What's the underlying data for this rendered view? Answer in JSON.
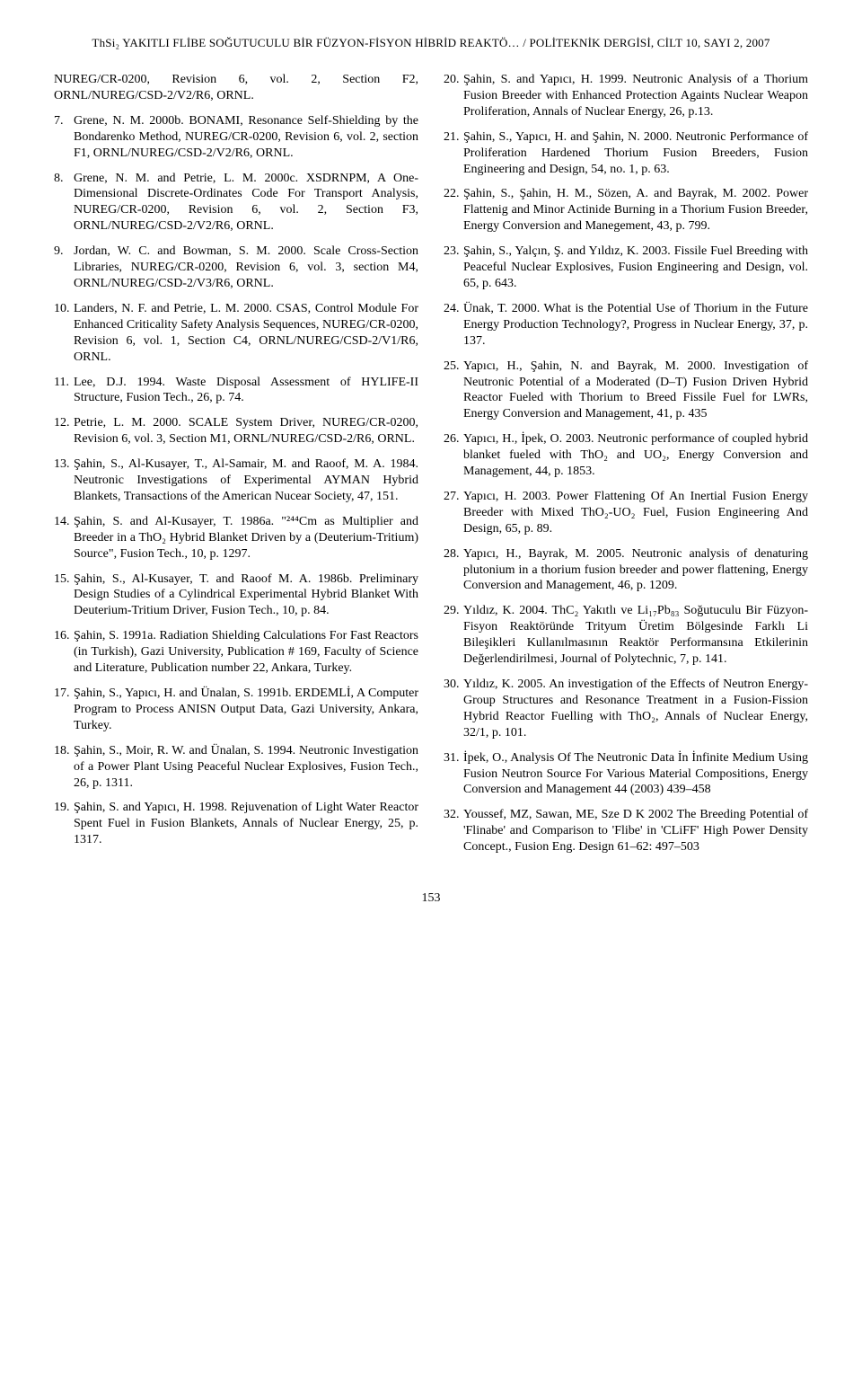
{
  "header": "ThSi₂ YAKITLI FLİBE SOĞUTUCULU BİR FÜZYON-FİSYON HİBRİD REAKTÖ… / POLİTEKNİK DERGİSİ, CİLT 10, SAYI 2, 2007",
  "page_number": "153",
  "left_refs": [
    {
      "n": "",
      "t": "NUREG/CR-0200, Revision 6, vol. 2, Section F2, ORNL/NUREG/CSD-2/V2/R6, ORNL."
    },
    {
      "n": "7.",
      "t": "Grene, N. M. 2000b. BONAMI, Resonance Self-Shielding by the Bondarenko Method, NUREG/CR-0200, Revision 6, vol. 2, section F1, ORNL/NUREG/CSD-2/V2/R6, ORNL."
    },
    {
      "n": "8.",
      "t": "Grene, N. M. and Petrie, L. M. 2000c. XSDRNPM, A One-Dimensional Discrete-Ordinates Code For Transport Analysis, NUREG/CR-0200, Revision 6, vol. 2, Section F3, ORNL/NUREG/CSD-2/V2/R6, ORNL."
    },
    {
      "n": "9.",
      "t": "Jordan, W. C. and Bowman, S. M. 2000. Scale Cross-Section Libraries, NUREG/CR-0200, Revision 6, vol. 3, section M4, ORNL/NUREG/CSD-2/V3/R6, ORNL."
    },
    {
      "n": "10.",
      "t": "Landers, N. F. and Petrie, L. M. 2000. CSAS, Control Module For Enhanced Criticality Safety Analysis Sequences, NUREG/CR-0200, Revision 6, vol. 1, Section C4, ORNL/NUREG/CSD-2/V1/R6, ORNL."
    },
    {
      "n": "11.",
      "t": "Lee, D.J. 1994. Waste Disposal Assessment of HYLIFE-II Structure, Fusion Tech., 26, p. 74."
    },
    {
      "n": "12.",
      "t": "Petrie, L. M. 2000. SCALE System Driver, NUREG/CR-0200, Revision 6, vol. 3, Section M1, ORNL/NUREG/CSD-2/R6, ORNL."
    },
    {
      "n": "13.",
      "t": "Şahin, S., Al-Kusayer, T., Al-Samair, M. and Raoof, M. A. 1984. Neutronic Investigations of Experimental AYMAN Hybrid Blankets, Transactions of the American Nucear Society, 47, 151."
    },
    {
      "n": "14.",
      "t": "Şahin, S. and Al-Kusayer, T. 1986a. \"²⁴⁴Cm as Multiplier and Breeder in a ThO₂ Hybrid Blanket Driven by a (Deuterium-Tritium) Source\", Fusion Tech., 10, p. 1297."
    },
    {
      "n": "15.",
      "t": "Şahin, S., Al-Kusayer, T. and Raoof M. A. 1986b. Preliminary Design Studies of a Cylindrical Experimental Hybrid Blanket With Deuterium-Tritium Driver, Fusion Tech., 10, p. 84."
    },
    {
      "n": "16.",
      "t": "Şahin, S. 1991a. Radiation Shielding Calculations For Fast Reactors (in Turkish), Gazi University, Publication # 169, Faculty of Science and Literature, Publication number 22, Ankara, Turkey."
    },
    {
      "n": "17.",
      "t": "Şahin, S., Yapıcı, H. and Ünalan, S. 1991b. ERDEMLİ, A Computer Program to Process ANISN Output Data, Gazi University, Ankara, Turkey."
    },
    {
      "n": "18.",
      "t": "Şahin, S., Moir, R. W. and Ünalan, S. 1994. Neutronic Investigation of a Power Plant Using Peaceful Nuclear Explosives, Fusion Tech., 26, p. 1311."
    },
    {
      "n": "19.",
      "t": "Şahin, S. and Yapıcı, H. 1998. Rejuvenation of Light Water Reactor Spent Fuel in Fusion Blankets, Annals of Nuclear Energy, 25, p. 1317."
    }
  ],
  "right_refs": [
    {
      "n": "20.",
      "t": "Şahin, S. and Yapıcı, H. 1999. Neutronic Analysis of a Thorium Fusion Breeder with Enhanced Protection Againts Nuclear Weapon Proliferation, Annals of Nuclear Energy, 26, p.13."
    },
    {
      "n": "21.",
      "t": "Şahin, S., Yapıcı, H. and Şahin, N. 2000. Neutronic Performance of Proliferation Hardened Thorium Fusion Breeders, Fusion Engineering and Design, 54, no. 1, p. 63."
    },
    {
      "n": "22.",
      "t": "Şahin, S., Şahin, H. M., Sözen, A. and Bayrak, M. 2002. Power Flattenig and Minor Actinide Burning in a Thorium Fusion Breeder, Energy Conversion and Manegement, 43, p. 799."
    },
    {
      "n": "23.",
      "t": "Şahin, S., Yalçın, Ş. and Yıldız, K. 2003. Fissile Fuel Breeding with Peaceful Nuclear Explosives, Fusion Engineering and Design, vol. 65, p. 643."
    },
    {
      "n": "24.",
      "t": "Ünak, T. 2000. What is the Potential Use of Thorium in the Future Energy Production Technology?, Progress in Nuclear Energy, 37, p. 137."
    },
    {
      "n": "25.",
      "t": "Yapıcı, H., Şahin, N. and Bayrak, M. 2000. Investigation of Neutronic Potential of a Moderated (D–T) Fusion Driven Hybrid Reactor Fueled with Thorium to Breed Fissile Fuel for LWRs, Energy Conversion and Management, 41, p. 435"
    },
    {
      "n": "26.",
      "t": "Yapıcı, H., İpek, O. 2003. Neutronic performance of coupled hybrid blanket fueled with ThO₂ and UO₂, Energy Conversion and Management, 44, p. 1853."
    },
    {
      "n": "27.",
      "t": "Yapıcı, H. 2003. Power Flattening Of An Inertial Fusion Energy Breeder with Mixed ThO₂-UO₂ Fuel, Fusion Engineering And Design, 65, p. 89."
    },
    {
      "n": "28.",
      "t": "Yapıcı, H., Bayrak, M. 2005. Neutronic analysis of denaturing plutonium in a thorium fusion breeder and power flattening, Energy Conversion and Management, 46, p. 1209."
    },
    {
      "n": "29.",
      "t": "Yıldız, K. 2004. ThC₂ Yakıtlı ve Li₁₇Pb₈₃ Soğutuculu Bir Füzyon-Fisyon Reaktöründe Trityum Üretim Bölgesinde Farklı Li Bileşikleri Kullanılmasının Reaktör Performansına Etkilerinin Değerlendirilmesi, Journal of Polytechnic, 7, p. 141."
    },
    {
      "n": "30.",
      "t": "Yıldız, K. 2005. An investigation of the Effects of Neutron Energy-Group Structures and Resonance Treatment in a Fusion-Fission Hybrid Reactor Fuelling with ThO₂, Annals of Nuclear Energy, 32/1, p. 101."
    },
    {
      "n": "31.",
      "t": "İpek, O., Analysis Of The Neutronic Data İn İnfinite Medium Using Fusion Neutron Source For Various Material Compositions, Energy Conversion and Management 44 (2003) 439–458"
    },
    {
      "n": "32.",
      "t": "Youssef, MZ, Sawan, ME, Sze D K 2002 The Breeding Potential of 'Flinabe' and Comparison to 'Flibe' in 'CLiFF' High Power Density Concept., Fusion Eng. Design 61–62: 497–503"
    }
  ]
}
